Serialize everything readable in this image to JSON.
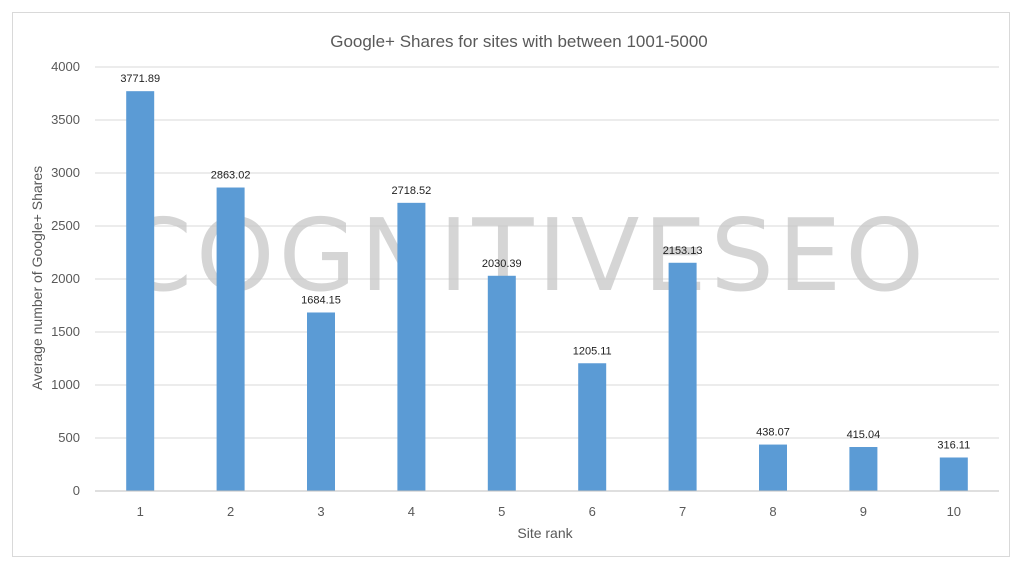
{
  "chart_data": {
    "type": "bar",
    "title": "Google+ Shares for sites with between 1001-5000",
    "xlabel": "Site rank",
    "ylabel": "Average number of Google+ Shares",
    "categories": [
      "1",
      "2",
      "3",
      "4",
      "5",
      "6",
      "7",
      "8",
      "9",
      "10"
    ],
    "values": [
      3771.89,
      2863.02,
      1684.15,
      2718.52,
      2030.39,
      1205.11,
      2153.13,
      438.07,
      415.04,
      316.11
    ],
    "data_labels": [
      "3771.89",
      "2863.02",
      "1684.15",
      "2718.52",
      "2030.39",
      "1205.11",
      "2153.13",
      "438.07",
      "415.04",
      "316.11"
    ],
    "ylim": [
      0,
      4000
    ],
    "yticks": [
      "0",
      "500",
      "1000",
      "1500",
      "2000",
      "2500",
      "3000",
      "3500",
      "4000"
    ],
    "grid": true,
    "bar_color": "#5b9bd5",
    "watermark": "COGNITIVESEO"
  }
}
